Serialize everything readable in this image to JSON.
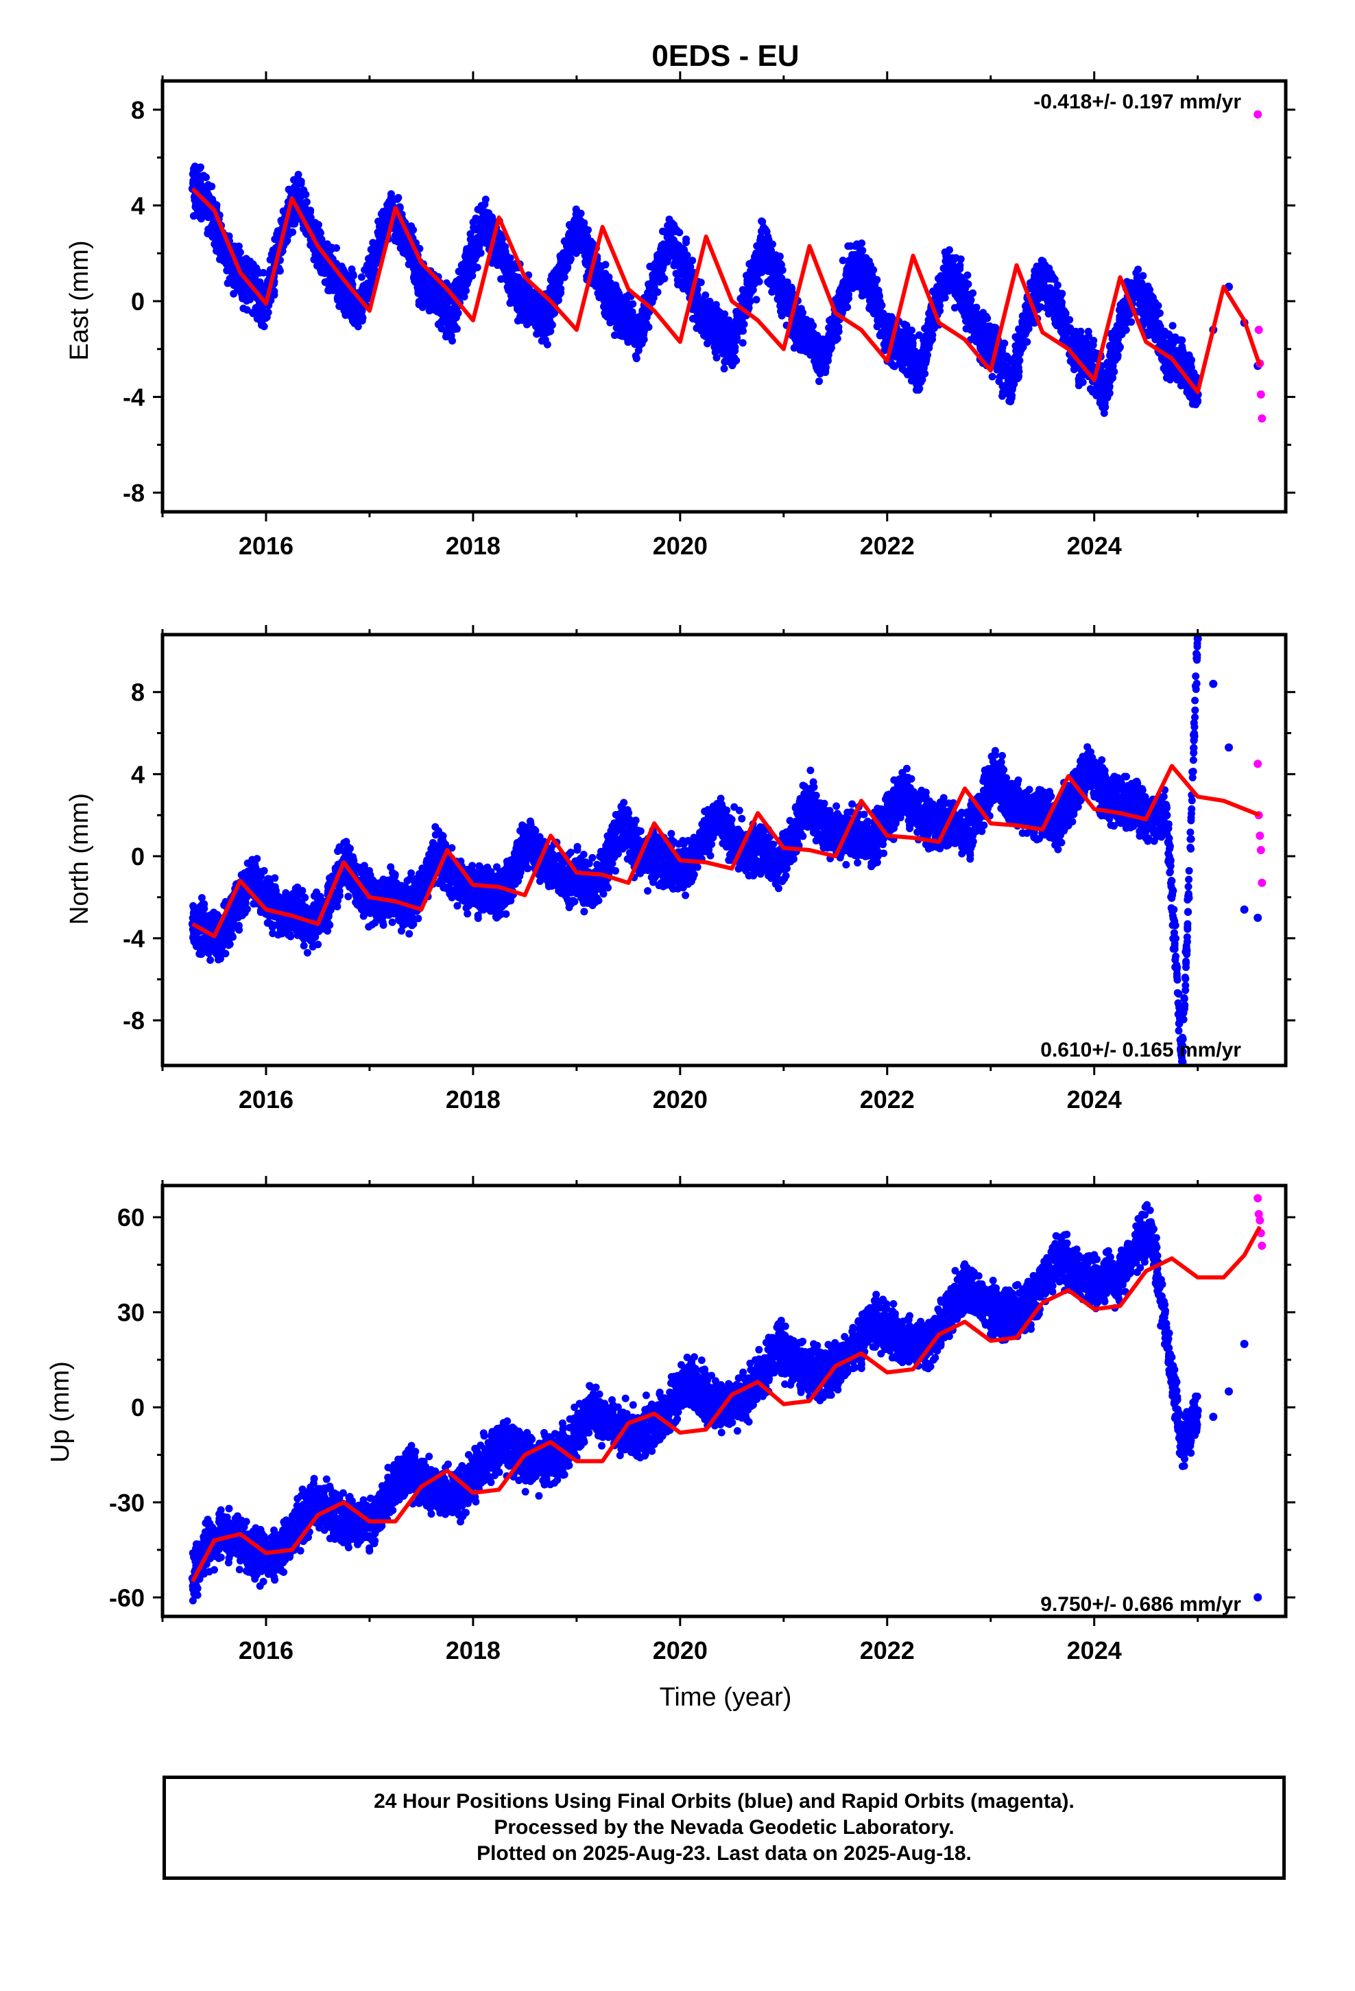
{
  "title": "0EDS - EU",
  "xlabel": "Time (year)",
  "footer": {
    "line1": "24 Hour Positions Using Final Orbits (blue) and Rapid Orbits (magenta).",
    "line2": "Processed by the Nevada Geodetic Laboratory.",
    "line3": "Plotted on 2025-Aug-23. Last data on 2025-Aug-18."
  },
  "colors": {
    "final_orbits": "#0000ff",
    "rapid_orbits": "#ff00ff",
    "model_fit": "#ff0000",
    "axes": "#000000"
  },
  "chart_data": [
    {
      "type": "scatter",
      "name": "east",
      "title": "0EDS - EU",
      "xlabel": "",
      "ylabel": "East (mm)",
      "xlim": [
        2015.0,
        2025.85
      ],
      "ylim": [
        -8.8,
        9.2
      ],
      "xticks": [
        2016,
        2018,
        2020,
        2022,
        2024
      ],
      "yticks": [
        -8,
        -4,
        0,
        4,
        8
      ],
      "rate_label": "-0.418+/- 0.197 mm/yr",
      "rate_position": "top-right",
      "series": [
        {
          "color": "#0000ff",
          "x": [
            2015.29,
            2015.4,
            2015.55,
            2015.7,
            2015.85,
            2016.0,
            2016.15,
            2016.3,
            2016.45,
            2016.6,
            2016.75,
            2016.9,
            2017.05,
            2017.2,
            2017.35,
            2017.5,
            2017.65,
            2017.8,
            2017.95,
            2018.1,
            2018.25,
            2018.4,
            2018.55,
            2018.7,
            2018.85,
            2019.0,
            2019.15,
            2019.3,
            2019.45,
            2019.6,
            2019.75,
            2019.9,
            2020.05,
            2020.2,
            2020.35,
            2020.5,
            2020.65,
            2020.8,
            2020.95,
            2021.1,
            2021.25,
            2021.4,
            2021.55,
            2021.7,
            2021.85,
            2022.0,
            2022.15,
            2022.3,
            2022.45,
            2022.6,
            2022.75,
            2022.9,
            2023.05,
            2023.2,
            2023.35,
            2023.5,
            2023.65,
            2023.8,
            2023.95,
            2024.1,
            2024.25,
            2024.4,
            2024.55,
            2024.7,
            2024.85,
            2025.0,
            2025.15,
            2025.3,
            2025.45,
            2025.58
          ],
          "y": [
            4.7,
            4.4,
            2.8,
            1.3,
            0.7,
            -0.1,
            2.6,
            4.3,
            2.8,
            1.3,
            0.6,
            -0.4,
            1.8,
            3.9,
            2.6,
            0.9,
            0.2,
            -0.8,
            1.6,
            3.4,
            2.2,
            0.5,
            -0.2,
            -0.9,
            1.3,
            3.1,
            1.7,
            0.1,
            -0.6,
            -1.5,
            0.8,
            2.6,
            1.4,
            -0.5,
            -1.1,
            -2.1,
            0.4,
            2.2,
            0.8,
            -0.9,
            -1.5,
            -2.5,
            0.0,
            1.8,
            0.5,
            -1.4,
            -1.8,
            -2.9,
            -0.4,
            1.4,
            0.1,
            -1.6,
            -2.1,
            -3.4,
            -0.7,
            1.0,
            -0.2,
            -2.0,
            -2.4,
            -3.8,
            -1.0,
            0.6,
            -0.5,
            -2.2,
            -2.6,
            -3.9,
            -1.2,
            0.6,
            -0.9,
            -2.7
          ]
        },
        {
          "color": "#ff00ff",
          "x": [
            2025.58,
            2025.59,
            2025.6,
            2025.61,
            2025.62
          ],
          "y": [
            7.8,
            -1.2,
            -2.6,
            -3.9,
            -4.9
          ]
        }
      ],
      "model_fit": {
        "color": "#ff0000",
        "x": [
          2015.29,
          2015.5,
          2015.75,
          2016.0,
          2016.25,
          2016.5,
          2016.75,
          2017.0,
          2017.25,
          2017.5,
          2017.75,
          2018.0,
          2018.25,
          2018.5,
          2018.75,
          2019.0,
          2019.25,
          2019.5,
          2019.75,
          2020.0,
          2020.25,
          2020.5,
          2020.75,
          2021.0,
          2021.25,
          2021.5,
          2021.75,
          2022.0,
          2022.25,
          2022.5,
          2022.75,
          2023.0,
          2023.25,
          2023.5,
          2023.75,
          2024.0,
          2024.25,
          2024.5,
          2024.75,
          2025.0,
          2025.25,
          2025.45,
          2025.6
        ],
        "y": [
          4.7,
          3.8,
          1.2,
          -0.1,
          4.3,
          2.3,
          0.9,
          -0.4,
          3.9,
          1.6,
          0.5,
          -0.8,
          3.5,
          1.0,
          0.0,
          -1.2,
          3.1,
          0.5,
          -0.4,
          -1.7,
          2.7,
          0.0,
          -0.8,
          -2.0,
          2.3,
          -0.5,
          -1.2,
          -2.5,
          1.9,
          -0.9,
          -1.6,
          -2.9,
          1.5,
          -1.3,
          -2.0,
          -3.3,
          1.0,
          -1.7,
          -2.4,
          -3.8,
          0.6,
          -0.8,
          -2.7
        ]
      }
    },
    {
      "type": "scatter",
      "name": "north",
      "title": "",
      "xlabel": "",
      "ylabel": "North (mm)",
      "xlim": [
        2015.0,
        2025.85
      ],
      "ylim": [
        -10.2,
        10.8
      ],
      "xticks": [
        2016,
        2018,
        2020,
        2022,
        2024
      ],
      "yticks": [
        -8,
        -4,
        0,
        4,
        8
      ],
      "rate_label": "0.610+/- 0.165 mm/yr",
      "rate_position": "bottom-right",
      "series": [
        {
          "color": "#0000ff",
          "x": [
            2015.29,
            2015.4,
            2015.55,
            2015.7,
            2015.85,
            2016.0,
            2016.15,
            2016.3,
            2016.45,
            2016.6,
            2016.75,
            2016.9,
            2017.05,
            2017.2,
            2017.35,
            2017.5,
            2017.65,
            2017.8,
            2017.95,
            2018.1,
            2018.25,
            2018.4,
            2018.55,
            2018.7,
            2018.85,
            2019.0,
            2019.15,
            2019.3,
            2019.45,
            2019.6,
            2019.75,
            2019.9,
            2020.05,
            2020.2,
            2020.35,
            2020.5,
            2020.65,
            2020.8,
            2020.95,
            2021.1,
            2021.25,
            2021.4,
            2021.55,
            2021.7,
            2021.85,
            2022.0,
            2022.15,
            2022.3,
            2022.45,
            2022.6,
            2022.75,
            2022.9,
            2023.05,
            2023.2,
            2023.35,
            2023.5,
            2023.65,
            2023.8,
            2023.95,
            2024.1,
            2024.25,
            2024.4,
            2024.55,
            2024.7,
            2024.85,
            2025.0,
            2025.15,
            2025.3,
            2025.45,
            2025.58
          ],
          "y": [
            -3.3,
            -3.5,
            -4.0,
            -2.6,
            -1.0,
            -2.1,
            -2.8,
            -2.7,
            -3.4,
            -2.3,
            -0.4,
            -1.5,
            -2.2,
            -1.9,
            -2.6,
            -1.8,
            0.2,
            -1.0,
            -1.6,
            -1.5,
            -2.0,
            -0.7,
            0.8,
            -0.4,
            -1.0,
            -1.0,
            -1.6,
            -0.1,
            1.5,
            0.2,
            -0.3,
            -0.3,
            -0.7,
            0.6,
            2.0,
            0.8,
            0.3,
            0.3,
            -0.3,
            1.1,
            2.7,
            1.4,
            1.0,
            1.0,
            0.5,
            1.8,
            3.2,
            2.0,
            1.6,
            1.6,
            1.0,
            2.4,
            3.9,
            2.6,
            2.2,
            2.2,
            1.5,
            2.9,
            4.4,
            3.0,
            2.7,
            2.6,
            1.8,
            2.0,
            -10.0,
            10.6,
            8.4,
            5.3,
            -2.6,
            -3.0
          ]
        },
        {
          "color": "#ff00ff",
          "x": [
            2025.58,
            2025.59,
            2025.6,
            2025.61,
            2025.62
          ],
          "y": [
            4.5,
            2.0,
            1.0,
            0.3,
            -1.3
          ]
        }
      ],
      "model_fit": {
        "color": "#ff0000",
        "x": [
          2015.29,
          2015.5,
          2015.75,
          2016.0,
          2016.25,
          2016.5,
          2016.75,
          2017.0,
          2017.25,
          2017.5,
          2017.75,
          2018.0,
          2018.25,
          2018.5,
          2018.75,
          2019.0,
          2019.25,
          2019.5,
          2019.75,
          2020.0,
          2020.25,
          2020.5,
          2020.75,
          2021.0,
          2021.25,
          2021.5,
          2021.75,
          2022.0,
          2022.25,
          2022.5,
          2022.75,
          2023.0,
          2023.25,
          2023.5,
          2023.75,
          2024.0,
          2024.25,
          2024.5,
          2024.75,
          2025.0,
          2025.25,
          2025.45,
          2025.6
        ],
        "y": [
          -3.3,
          -3.9,
          -1.2,
          -2.6,
          -2.9,
          -3.3,
          -0.3,
          -2.0,
          -2.2,
          -2.6,
          0.3,
          -1.4,
          -1.5,
          -1.9,
          1.0,
          -0.8,
          -0.9,
          -1.3,
          1.6,
          -0.2,
          -0.3,
          -0.6,
          2.1,
          0.4,
          0.3,
          0.0,
          2.7,
          1.0,
          0.9,
          0.7,
          3.3,
          1.6,
          1.5,
          1.3,
          3.9,
          2.3,
          2.1,
          1.8,
          4.4,
          2.9,
          2.7,
          2.3,
          2.0
        ]
      }
    },
    {
      "type": "scatter",
      "name": "up",
      "title": "",
      "xlabel": "Time (year)",
      "ylabel": "Up (mm)",
      "xlim": [
        2015.0,
        2025.85
      ],
      "ylim": [
        -66,
        70
      ],
      "xticks": [
        2016,
        2018,
        2020,
        2022,
        2024
      ],
      "yticks": [
        -60,
        -30,
        0,
        30,
        60
      ],
      "rate_label": "9.750+/- 0.686 mm/yr",
      "rate_position": "bottom-right",
      "series": [
        {
          "color": "#0000ff",
          "x": [
            2015.29,
            2015.4,
            2015.55,
            2015.7,
            2015.85,
            2016.0,
            2016.15,
            2016.3,
            2016.45,
            2016.6,
            2016.75,
            2016.9,
            2017.05,
            2017.2,
            2017.35,
            2017.5,
            2017.65,
            2017.8,
            2017.95,
            2018.1,
            2018.25,
            2018.4,
            2018.55,
            2018.7,
            2018.85,
            2019.0,
            2019.15,
            2019.3,
            2019.45,
            2019.6,
            2019.75,
            2019.9,
            2020.05,
            2020.2,
            2020.35,
            2020.5,
            2020.65,
            2020.8,
            2020.95,
            2021.1,
            2021.25,
            2021.4,
            2021.55,
            2021.7,
            2021.85,
            2022.0,
            2022.15,
            2022.3,
            2022.45,
            2022.6,
            2022.75,
            2022.9,
            2023.05,
            2023.2,
            2023.35,
            2023.5,
            2023.65,
            2023.8,
            2023.95,
            2024.1,
            2024.25,
            2024.4,
            2024.55,
            2024.7,
            2024.85,
            2025.0,
            2025.15,
            2025.3,
            2025.45,
            2025.58
          ],
          "y": [
            -54,
            -46,
            -39,
            -42,
            -46,
            -47,
            -45,
            -38,
            -31,
            -32,
            -36,
            -37,
            -35,
            -27,
            -20,
            -23,
            -27,
            -28,
            -25,
            -18,
            -11,
            -14,
            -17,
            -18,
            -15,
            -8,
            -1,
            -4,
            -8,
            -8,
            -6,
            1,
            9,
            5,
            1,
            1,
            3,
            10,
            19,
            15,
            11,
            11,
            13,
            20,
            28,
            24,
            21,
            20,
            22,
            30,
            38,
            34,
            30,
            30,
            32,
            39,
            47,
            44,
            40,
            40,
            42,
            50,
            57,
            22,
            -12,
            -1,
            -3,
            5,
            20,
            -60
          ]
        },
        {
          "color": "#ff00ff",
          "x": [
            2025.58,
            2025.59,
            2025.6,
            2025.61,
            2025.62
          ],
          "y": [
            66,
            61,
            59,
            55,
            51
          ]
        }
      ],
      "model_fit": {
        "color": "#ff0000",
        "x": [
          2015.29,
          2015.5,
          2015.75,
          2016.0,
          2016.25,
          2016.5,
          2016.75,
          2017.0,
          2017.25,
          2017.5,
          2017.75,
          2018.0,
          2018.25,
          2018.5,
          2018.75,
          2019.0,
          2019.25,
          2019.5,
          2019.75,
          2020.0,
          2020.25,
          2020.5,
          2020.75,
          2021.0,
          2021.25,
          2021.5,
          2021.75,
          2022.0,
          2022.25,
          2022.5,
          2022.75,
          2023.0,
          2023.25,
          2023.5,
          2023.75,
          2024.0,
          2024.25,
          2024.5,
          2024.75,
          2025.0,
          2025.25,
          2025.45,
          2025.6
        ],
        "y": [
          -55,
          -42,
          -40,
          -46,
          -45,
          -34,
          -30,
          -36,
          -36,
          -25,
          -20,
          -27,
          -26,
          -15,
          -11,
          -17,
          -17,
          -5,
          -2,
          -8,
          -7,
          4,
          8,
          1,
          2,
          13,
          17,
          11,
          12,
          23,
          27,
          21,
          22,
          33,
          37,
          31,
          32,
          43,
          47,
          41,
          41,
          48,
          57
        ]
      }
    }
  ]
}
